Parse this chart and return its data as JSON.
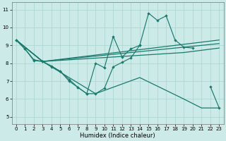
{
  "xlabel": "Humidex (Indice chaleur)",
  "bg_color": "#cceae7",
  "grid_color": "#aad4d0",
  "line_color": "#1a7a6e",
  "xlim": [
    -0.5,
    23.5
  ],
  "ylim": [
    4.6,
    11.4
  ],
  "yticks": [
    5,
    6,
    7,
    8,
    9,
    10,
    11
  ],
  "xticks": [
    0,
    1,
    2,
    3,
    4,
    5,
    6,
    7,
    8,
    9,
    10,
    11,
    12,
    13,
    14,
    15,
    16,
    17,
    18,
    19,
    20,
    21,
    22,
    23
  ],
  "curve1_x": [
    0,
    1,
    2,
    3,
    4,
    5,
    6,
    7,
    8,
    9,
    10,
    11,
    12,
    13,
    14,
    15,
    16,
    17,
    18,
    19,
    20,
    22,
    23
  ],
  "curve1_y": [
    9.3,
    8.8,
    8.2,
    8.1,
    7.8,
    7.55,
    7.1,
    6.65,
    6.3,
    6.3,
    6.6,
    7.8,
    8.05,
    8.3,
    9.0,
    10.8,
    10.4,
    10.65,
    9.3,
    8.9,
    8.85,
    6.7,
    5.5
  ],
  "curve2_x": [
    0,
    1,
    2,
    3,
    4,
    5,
    6,
    7,
    8,
    9,
    10,
    11,
    12,
    13,
    14
  ],
  "curve2_y": [
    9.3,
    8.8,
    8.15,
    8.1,
    7.85,
    7.55,
    7.0,
    6.65,
    6.3,
    8.0,
    7.75,
    9.5,
    8.35,
    8.8,
    9.0
  ],
  "trend1_x": [
    0,
    3,
    23
  ],
  "trend1_y": [
    9.3,
    8.1,
    9.3
  ],
  "trend2_x": [
    0,
    3,
    19,
    23
  ],
  "trend2_y": [
    9.3,
    8.1,
    8.9,
    9.1
  ],
  "trend3_x": [
    0,
    3,
    19,
    23
  ],
  "trend3_y": [
    9.3,
    8.1,
    8.6,
    8.85
  ],
  "diag_x": [
    0,
    3,
    9,
    14,
    19,
    21,
    23
  ],
  "diag_y": [
    9.3,
    8.1,
    6.3,
    7.2,
    6.0,
    5.5,
    5.5
  ]
}
